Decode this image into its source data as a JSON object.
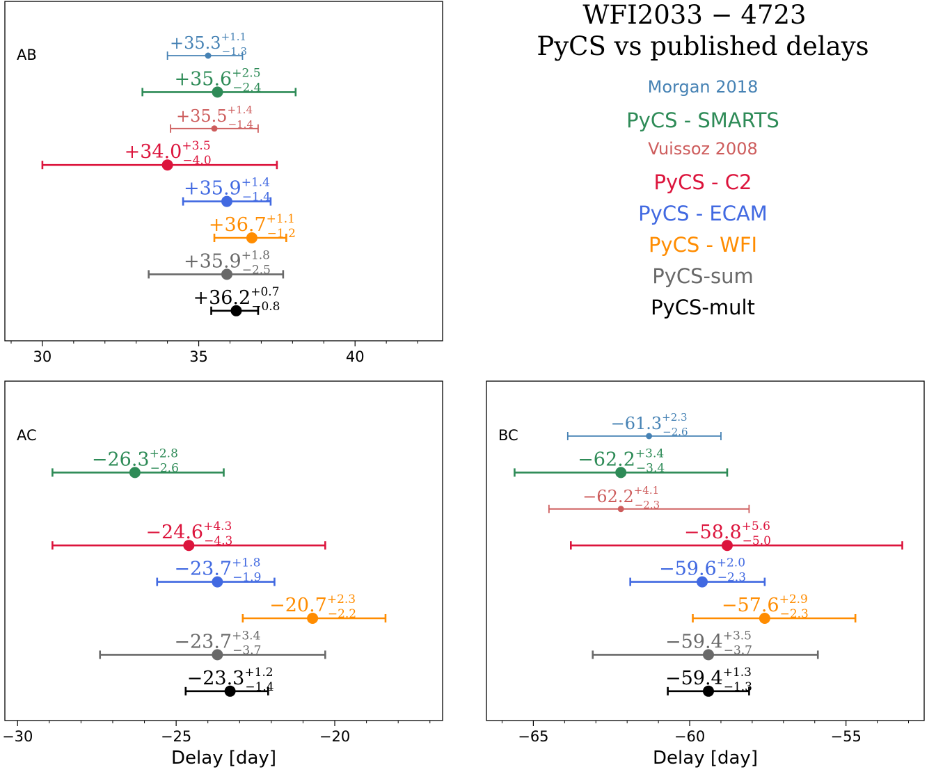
{
  "figure": {
    "title_line1": "WFI2033 − 4723",
    "title_line2": "PyCS vs published delays",
    "xlabel": "Delay [day]"
  },
  "legend": [
    {
      "label": "Morgan 2018",
      "color": "#4682b4"
    },
    {
      "label": "PyCS - SMARTS",
      "color": "#2e8b57"
    },
    {
      "label": "Vuissoz 2008",
      "color": "#cd5c5c"
    },
    {
      "label": "PyCS - C2",
      "color": "#dc143c"
    },
    {
      "label": "PyCS - ECAM",
      "color": "#4169e1"
    },
    {
      "label": "PyCS - WFI",
      "color": "#ff8c00"
    },
    {
      "label": "PyCS-sum",
      "color": "#696969"
    },
    {
      "label": "PyCS-mult",
      "color": "#000000"
    }
  ],
  "chart_data": [
    {
      "type": "errorbar",
      "panel_label": "AB",
      "xlim": [
        28.8,
        42.8
      ],
      "xticks": [
        30,
        35,
        40
      ],
      "xtick_labels": [
        "30",
        "35",
        "40"
      ],
      "xlabel": "",
      "series": [
        {
          "name": "Morgan 2018",
          "value": 35.3,
          "plus": 1.1,
          "minus": 1.3,
          "label": "+35.3",
          "plus_label": "+1.1",
          "minus_label": "−1.3",
          "color": "#4682b4",
          "marker": "small"
        },
        {
          "name": "PyCS - SMARTS",
          "value": 35.6,
          "plus": 2.5,
          "minus": 2.4,
          "label": "+35.6",
          "plus_label": "+2.5",
          "minus_label": "−2.4",
          "color": "#2e8b57",
          "marker": "large"
        },
        {
          "name": "Vuissoz 2008",
          "value": 35.5,
          "plus": 1.4,
          "minus": 1.4,
          "label": "+35.5",
          "plus_label": "+1.4",
          "minus_label": "−1.4",
          "color": "#cd5c5c",
          "marker": "small"
        },
        {
          "name": "PyCS - C2",
          "value": 34.0,
          "plus": 3.5,
          "minus": 4.0,
          "label": "+34.0",
          "plus_label": "+3.5",
          "minus_label": "−4.0",
          "color": "#dc143c",
          "marker": "large"
        },
        {
          "name": "PyCS - ECAM",
          "value": 35.9,
          "plus": 1.4,
          "minus": 1.4,
          "label": "+35.9",
          "plus_label": "+1.4",
          "minus_label": "−1.4",
          "color": "#4169e1",
          "marker": "large"
        },
        {
          "name": "PyCS - WFI",
          "value": 36.7,
          "plus": 1.1,
          "minus": 1.2,
          "label": "+36.7",
          "plus_label": "+1.1",
          "minus_label": "−1.2",
          "color": "#ff8c00",
          "marker": "large"
        },
        {
          "name": "PyCS-sum",
          "value": 35.9,
          "plus": 1.8,
          "minus": 2.5,
          "label": "+35.9",
          "plus_label": "+1.8",
          "minus_label": "−2.5",
          "color": "#696969",
          "marker": "large"
        },
        {
          "name": "PyCS-mult",
          "value": 36.2,
          "plus": 0.7,
          "minus": 0.8,
          "label": "+36.2",
          "plus_label": "+0.7",
          "minus_label": "−0.8",
          "color": "#000000",
          "marker": "large"
        }
      ]
    },
    {
      "type": "errorbar",
      "panel_label": "AC",
      "xlim": [
        -30.4,
        -16.6
      ],
      "xticks": [
        -30,
        -25,
        -20
      ],
      "xtick_labels": [
        "−30",
        "−25",
        "−20"
      ],
      "xlabel": "Delay [day]",
      "series": [
        {
          "name": "Morgan 2018",
          "value": null
        },
        {
          "name": "PyCS - SMARTS",
          "value": -26.3,
          "plus": 2.8,
          "minus": 2.6,
          "label": "−26.3",
          "plus_label": "+2.8",
          "minus_label": "−2.6",
          "color": "#2e8b57",
          "marker": "large"
        },
        {
          "name": "Vuissoz 2008",
          "value": null
        },
        {
          "name": "PyCS - C2",
          "value": -24.6,
          "plus": 4.3,
          "minus": 4.3,
          "label": "−24.6",
          "plus_label": "+4.3",
          "minus_label": "−4.3",
          "color": "#dc143c",
          "marker": "large"
        },
        {
          "name": "PyCS - ECAM",
          "value": -23.7,
          "plus": 1.8,
          "minus": 1.9,
          "label": "−23.7",
          "plus_label": "+1.8",
          "minus_label": "−1.9",
          "color": "#4169e1",
          "marker": "large"
        },
        {
          "name": "PyCS - WFI",
          "value": -20.7,
          "plus": 2.3,
          "minus": 2.2,
          "label": "−20.7",
          "plus_label": "+2.3",
          "minus_label": "−2.2",
          "color": "#ff8c00",
          "marker": "large"
        },
        {
          "name": "PyCS-sum",
          "value": -23.7,
          "plus": 3.4,
          "minus": 3.7,
          "label": "−23.7",
          "plus_label": "+3.4",
          "minus_label": "−3.7",
          "color": "#696969",
          "marker": "large"
        },
        {
          "name": "PyCS-mult",
          "value": -23.3,
          "plus": 1.2,
          "minus": 1.4,
          "label": "−23.3",
          "plus_label": "+1.2",
          "minus_label": "−1.4",
          "color": "#000000",
          "marker": "large"
        }
      ]
    },
    {
      "type": "errorbar",
      "panel_label": "BC",
      "xlim": [
        -66.5,
        -52.5
      ],
      "xticks": [
        -65,
        -60,
        -55
      ],
      "xtick_labels": [
        "−65",
        "−60",
        "−55"
      ],
      "xlabel": "Delay [day]",
      "series": [
        {
          "name": "Morgan 2018",
          "value": -61.3,
          "plus": 2.3,
          "minus": 2.6,
          "label": "−61.3",
          "plus_label": "+2.3",
          "minus_label": "−2.6",
          "color": "#4682b4",
          "marker": "small"
        },
        {
          "name": "PyCS - SMARTS",
          "value": -62.2,
          "plus": 3.4,
          "minus": 3.4,
          "label": "−62.2",
          "plus_label": "+3.4",
          "minus_label": "−3.4",
          "color": "#2e8b57",
          "marker": "large"
        },
        {
          "name": "Vuissoz 2008",
          "value": -62.2,
          "plus": 4.1,
          "minus": 2.3,
          "label": "−62.2",
          "plus_label": "+4.1",
          "minus_label": "−2.3",
          "color": "#cd5c5c",
          "marker": "small"
        },
        {
          "name": "PyCS - C2",
          "value": -58.8,
          "plus": 5.6,
          "minus": 5.0,
          "label": "−58.8",
          "plus_label": "+5.6",
          "minus_label": "−5.0",
          "color": "#dc143c",
          "marker": "large"
        },
        {
          "name": "PyCS - ECAM",
          "value": -59.6,
          "plus": 2.0,
          "minus": 2.3,
          "label": "−59.6",
          "plus_label": "+2.0",
          "minus_label": "−2.3",
          "color": "#4169e1",
          "marker": "large"
        },
        {
          "name": "PyCS - WFI",
          "value": -57.6,
          "plus": 2.9,
          "minus": 2.3,
          "label": "−57.6",
          "plus_label": "+2.9",
          "minus_label": "−2.3",
          "color": "#ff8c00",
          "marker": "large"
        },
        {
          "name": "PyCS-sum",
          "value": -59.4,
          "plus": 3.5,
          "minus": 3.7,
          "label": "−59.4",
          "plus_label": "+3.5",
          "minus_label": "−3.7",
          "color": "#696969",
          "marker": "large"
        },
        {
          "name": "PyCS-mult",
          "value": -59.4,
          "plus": 1.3,
          "minus": 1.3,
          "label": "−59.4",
          "plus_label": "+1.3",
          "minus_label": "−1.3",
          "color": "#000000",
          "marker": "large"
        }
      ]
    }
  ]
}
